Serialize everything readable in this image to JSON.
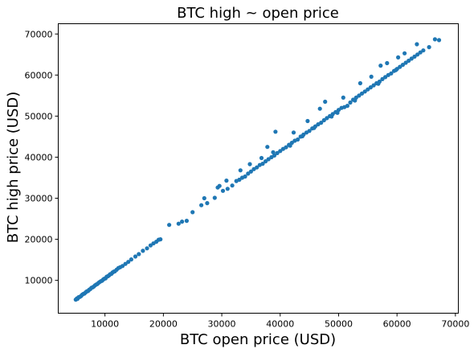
{
  "chart_data": {
    "type": "scatter",
    "title": "BTC high ~ open price",
    "xlabel": "BTC open price (USD)",
    "ylabel": "BTC high price (USD)",
    "xlim": [
      2000,
      70500
    ],
    "ylim": [
      2000,
      72500
    ],
    "xticks": [
      10000,
      20000,
      30000,
      40000,
      50000,
      60000,
      70000
    ],
    "yticks": [
      10000,
      20000,
      30000,
      40000,
      50000,
      60000,
      70000
    ],
    "grid": false,
    "legend": "none",
    "series": [
      {
        "color": "#1f77b4",
        "points": [
          [
            5000,
            5300
          ],
          [
            5200,
            5600
          ],
          [
            5300,
            5500
          ],
          [
            5500,
            5900
          ],
          [
            5700,
            6000
          ],
          [
            5900,
            6200
          ],
          [
            6100,
            6500
          ],
          [
            6300,
            6700
          ],
          [
            6500,
            6800
          ],
          [
            6700,
            7100
          ],
          [
            6900,
            7300
          ],
          [
            7100,
            7400
          ],
          [
            7300,
            7700
          ],
          [
            7500,
            7900
          ],
          [
            7700,
            8200
          ],
          [
            7900,
            8300
          ],
          [
            8100,
            8500
          ],
          [
            8300,
            8800
          ],
          [
            8500,
            9000
          ],
          [
            8700,
            9100
          ],
          [
            8900,
            9400
          ],
          [
            9100,
            9600
          ],
          [
            9300,
            9800
          ],
          [
            9500,
            9900
          ],
          [
            9700,
            10200
          ],
          [
            9900,
            10400
          ],
          [
            10100,
            10500
          ],
          [
            10300,
            10900
          ],
          [
            10500,
            11000
          ],
          [
            10700,
            11200
          ],
          [
            10900,
            11500
          ],
          [
            11100,
            11600
          ],
          [
            11300,
            11900
          ],
          [
            11500,
            12100
          ],
          [
            11700,
            12200
          ],
          [
            12000,
            12600
          ],
          [
            12300,
            13000
          ],
          [
            12600,
            13200
          ],
          [
            13000,
            13500
          ],
          [
            13500,
            14000
          ],
          [
            14000,
            14500
          ],
          [
            14500,
            15100
          ],
          [
            15200,
            15800
          ],
          [
            15800,
            16400
          ],
          [
            16500,
            17200
          ],
          [
            17200,
            17800
          ],
          [
            17800,
            18500
          ],
          [
            18300,
            19000
          ],
          [
            18800,
            19400
          ],
          [
            19200,
            19900
          ],
          [
            19500,
            20000
          ],
          [
            21000,
            23500
          ],
          [
            22600,
            23800
          ],
          [
            23200,
            24300
          ],
          [
            24000,
            24500
          ],
          [
            25000,
            26600
          ],
          [
            26500,
            28300
          ],
          [
            27500,
            28800
          ],
          [
            28800,
            30100
          ],
          [
            29300,
            32600
          ],
          [
            29600,
            33000
          ],
          [
            30200,
            31800
          ],
          [
            31000,
            32300
          ],
          [
            31800,
            33100
          ],
          [
            32500,
            34200
          ],
          [
            33000,
            34500
          ],
          [
            33500,
            35000
          ],
          [
            34000,
            35300
          ],
          [
            34500,
            36000
          ],
          [
            35000,
            36500
          ],
          [
            35500,
            37100
          ],
          [
            36000,
            37500
          ],
          [
            36500,
            38100
          ],
          [
            37000,
            38400
          ],
          [
            37500,
            39000
          ],
          [
            38000,
            39500
          ],
          [
            38500,
            40000
          ],
          [
            39000,
            40400
          ],
          [
            39500,
            41000
          ],
          [
            40000,
            41500
          ],
          [
            40500,
            42000
          ],
          [
            41000,
            42400
          ],
          [
            41500,
            43000
          ],
          [
            42000,
            43500
          ],
          [
            42500,
            44000
          ],
          [
            43000,
            44300
          ],
          [
            43500,
            45000
          ],
          [
            44000,
            45500
          ],
          [
            44500,
            46000
          ],
          [
            45000,
            46400
          ],
          [
            45500,
            47000
          ],
          [
            46000,
            47500
          ],
          [
            46500,
            48000
          ],
          [
            47000,
            48400
          ],
          [
            47500,
            49000
          ],
          [
            48000,
            49500
          ],
          [
            48500,
            50000
          ],
          [
            49000,
            50500
          ],
          [
            49500,
            51000
          ],
          [
            50000,
            51500
          ],
          [
            50500,
            52000
          ],
          [
            51000,
            52200
          ],
          [
            51500,
            52500
          ],
          [
            52000,
            53300
          ],
          [
            52500,
            54000
          ],
          [
            53000,
            54500
          ],
          [
            53500,
            55000
          ],
          [
            54000,
            55500
          ],
          [
            54500,
            56000
          ],
          [
            55000,
            56500
          ],
          [
            55500,
            57000
          ],
          [
            56000,
            57500
          ],
          [
            56500,
            58000
          ],
          [
            57000,
            58400
          ],
          [
            57500,
            59000
          ],
          [
            58000,
            59500
          ],
          [
            58500,
            60000
          ],
          [
            59000,
            60400
          ],
          [
            59500,
            61000
          ],
          [
            60000,
            61500
          ],
          [
            60500,
            62000
          ],
          [
            61000,
            62500
          ],
          [
            61500,
            63000
          ],
          [
            62000,
            63500
          ],
          [
            62500,
            64000
          ],
          [
            63000,
            64500
          ],
          [
            63500,
            65000
          ],
          [
            64000,
            65500
          ],
          [
            64500,
            66000
          ],
          [
            65500,
            66800
          ],
          [
            66500,
            68700
          ],
          [
            67200,
            68500
          ],
          [
            39200,
            46200
          ],
          [
            42300,
            46000
          ],
          [
            46800,
            51800
          ],
          [
            50800,
            54500
          ],
          [
            53700,
            58000
          ],
          [
            57200,
            62300
          ],
          [
            60200,
            64300
          ],
          [
            63400,
            67500
          ],
          [
            27000,
            30000
          ],
          [
            33200,
            36800
          ],
          [
            37800,
            42500
          ],
          [
            44700,
            48800
          ],
          [
            47700,
            53500
          ],
          [
            55600,
            59600
          ],
          [
            58300,
            62900
          ],
          [
            61300,
            65300
          ],
          [
            36800,
            39800
          ],
          [
            41700,
            42800
          ],
          [
            45800,
            47100
          ],
          [
            49800,
            50800
          ],
          [
            52800,
            53800
          ],
          [
            56800,
            57900
          ],
          [
            59800,
            61200
          ],
          [
            30800,
            34300
          ],
          [
            34800,
            38300
          ],
          [
            38800,
            41200
          ],
          [
            43800,
            45100
          ],
          [
            48800,
            49900
          ]
        ]
      }
    ]
  }
}
